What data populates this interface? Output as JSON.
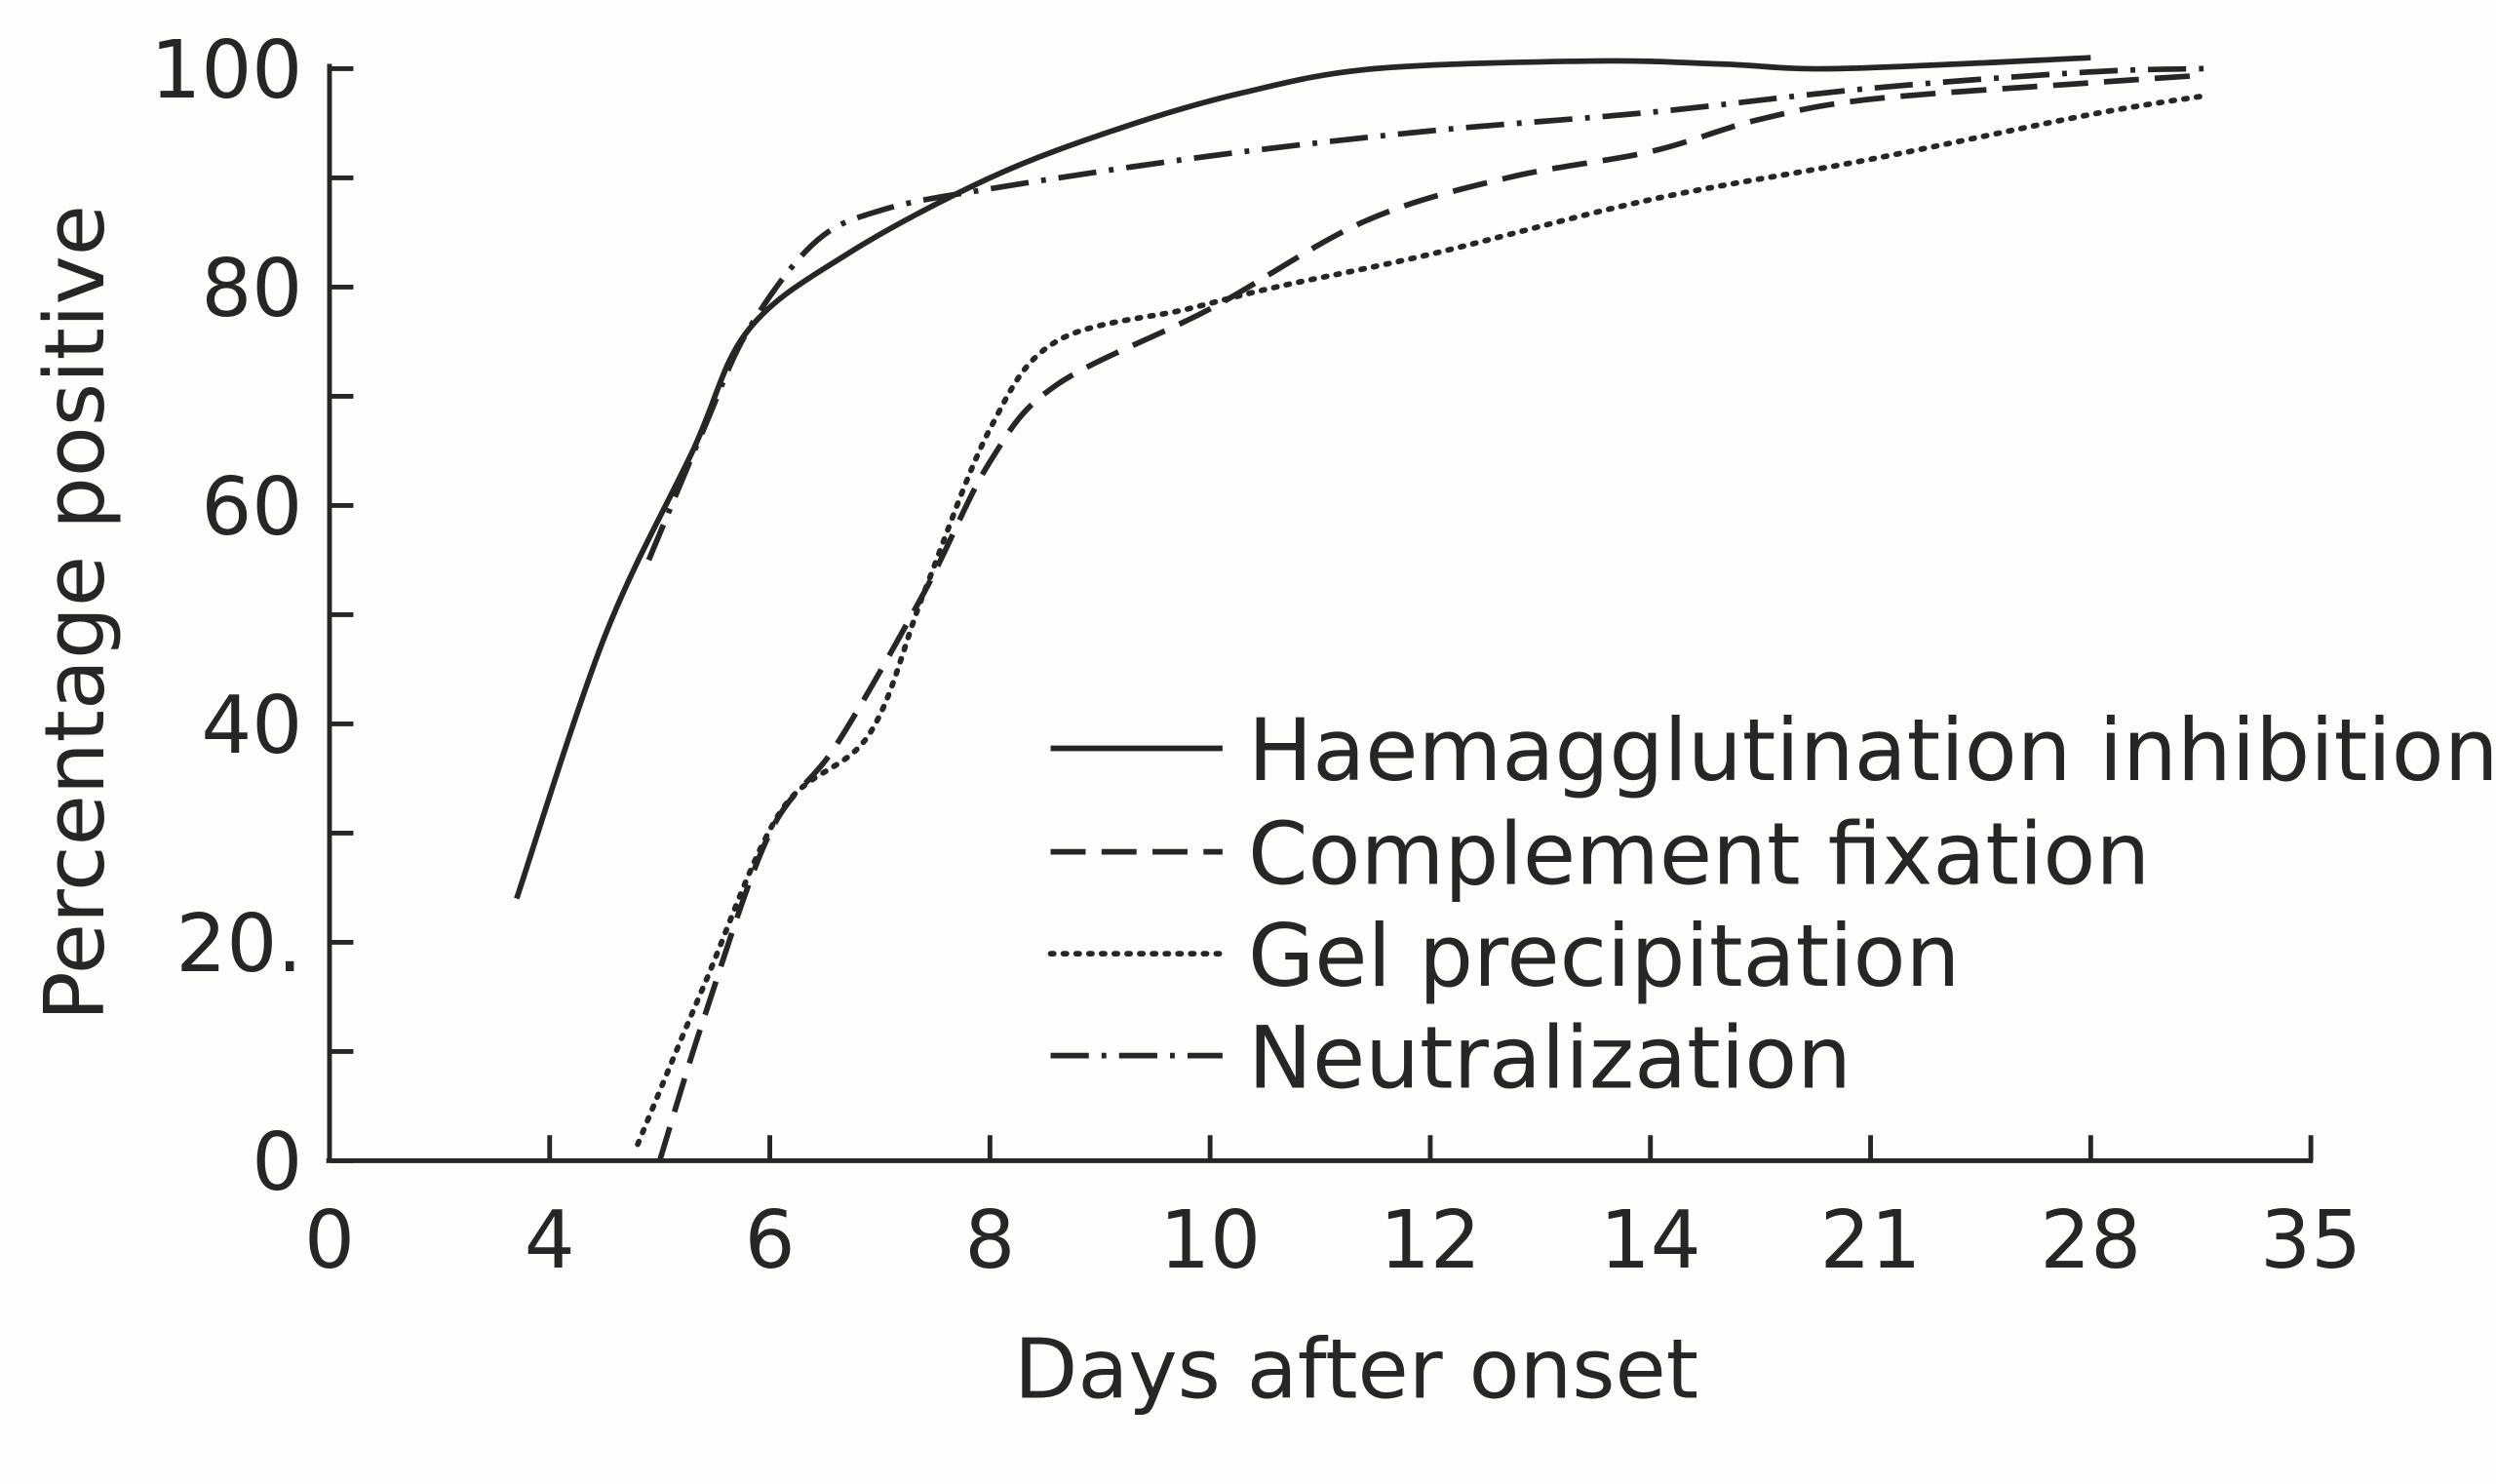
{
  "chart_data": {
    "type": "line",
    "title": "",
    "xlabel": "Days after onset",
    "ylabel": "Percentage positive",
    "x_ticks": [
      0,
      4,
      6,
      8,
      10,
      12,
      14,
      21,
      28,
      35
    ],
    "x_tick_labels": [
      "0",
      "4",
      "6",
      "8",
      "10",
      "12",
      "14",
      "21",
      "28",
      "35"
    ],
    "x_scale": "ordinal ticks, equally spaced",
    "y_ticks": [
      0,
      20,
      40,
      60,
      80,
      100
    ],
    "y_tick_labels": [
      "0",
      "20.",
      "40",
      "60",
      "80",
      "100"
    ],
    "y_minor_ticks": [
      10,
      30,
      50,
      70,
      90
    ],
    "ylim": [
      0,
      100
    ],
    "grid": false,
    "legend_position": "bottom-right",
    "series": [
      {
        "name": "Haemagglutination inhibition",
        "style": "solid",
        "x": [
          3.4,
          4.5,
          5.3,
          5.8,
          6.7,
          8,
          9.2,
          10.3,
          11.5,
          13.5,
          16.4,
          20,
          28
        ],
        "y": [
          24,
          48,
          65,
          76,
          83,
          90,
          94.6,
          97.8,
          100,
          100.7,
          100.4,
          100,
          101
        ]
      },
      {
        "name": "Complement fixation",
        "style": "dashed",
        "x": [
          5.0,
          5.4,
          6,
          6.6,
          7.4,
          8,
          8.6,
          10,
          11.4,
          12.7,
          14,
          17.4,
          21,
          28,
          31.6
        ],
        "y": [
          0,
          13,
          30,
          38,
          52,
          64,
          71,
          78,
          86,
          90,
          92.4,
          95.3,
          97.2,
          98.7,
          99.4
        ]
      },
      {
        "name": "Gel precipitation",
        "style": "dotted",
        "x": [
          4.8,
          5.4,
          6.1,
          6.9,
          7.4,
          8,
          8.6,
          9.8,
          10.6,
          12,
          14,
          21,
          28,
          31.6
        ],
        "y": [
          1.5,
          16,
          32,
          39,
          52,
          67,
          75,
          78,
          80,
          83,
          88,
          91.7,
          95.8,
          97.5
        ]
      },
      {
        "name": "Neutralization",
        "style": "dash-dot",
        "x": [
          4.9,
          5.4,
          5.8,
          6.4,
          7,
          8,
          10,
          12,
          14,
          21,
          28,
          31.6
        ],
        "y": [
          55,
          67,
          76,
          84,
          87,
          89,
          92,
          94.3,
          96,
          98.2,
          99.7,
          100
        ]
      }
    ]
  },
  "colors": {
    "ink": "#262626",
    "paper": "#fdfdfb"
  }
}
